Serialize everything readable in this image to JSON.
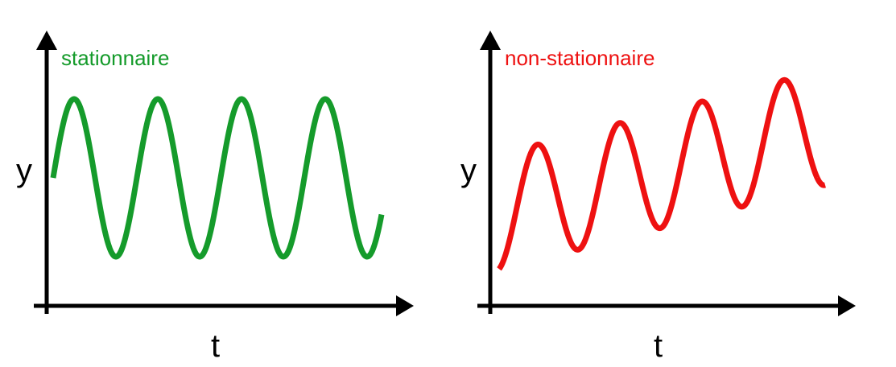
{
  "panels": [
    {
      "id": "stationary",
      "title": "stationnaire",
      "color": "#159b2b",
      "y_label": "y",
      "x_label": "t",
      "trend": "constant mean (no trend)"
    },
    {
      "id": "non-stationary",
      "title": "non-stationnaire",
      "color": "#ee1111",
      "y_label": "y",
      "x_label": "t",
      "trend": "rising mean (upward trend)"
    }
  ],
  "colors": {
    "axis": "#000000",
    "background": "#ffffff"
  }
}
